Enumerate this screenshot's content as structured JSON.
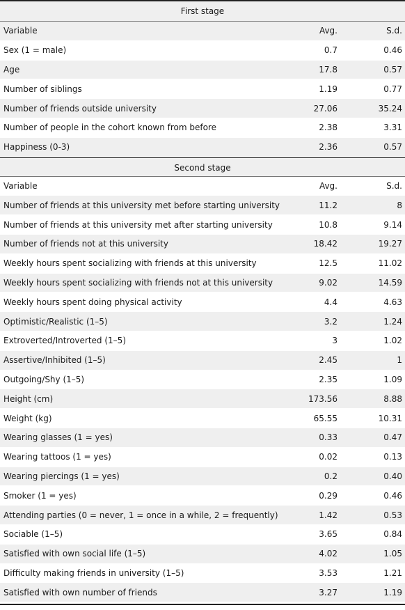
{
  "stage1": {
    "title": "First stage",
    "header": {
      "variable": "Variable",
      "avg": "Avg.",
      "sd": "S.d."
    },
    "rows": [
      {
        "variable": "Sex (1 = male)",
        "avg": "0.7",
        "sd": "0.46"
      },
      {
        "variable": "Age",
        "avg": "17.8",
        "sd": "0.57"
      },
      {
        "variable": "Number of siblings",
        "avg": "1.19",
        "sd": "0.77"
      },
      {
        "variable": "Number of friends outside university",
        "avg": "27.06",
        "sd": "35.24"
      },
      {
        "variable": "Number of people in the cohort known from before",
        "avg": "2.38",
        "sd": "3.31"
      },
      {
        "variable": "Happiness (0-3)",
        "avg": "2.36",
        "sd": "0.57"
      }
    ]
  },
  "stage2": {
    "title": "Second stage",
    "header": {
      "variable": "Variable",
      "avg": "Avg.",
      "sd": "S.d."
    },
    "rows": [
      {
        "variable": "Number of friends at this university met before starting university",
        "avg": "11.2",
        "sd": "8"
      },
      {
        "variable": "Number of friends at this university met after starting university",
        "avg": "10.8",
        "sd": "9.14"
      },
      {
        "variable": "Number of friends not at this university",
        "avg": "18.42",
        "sd": "19.27"
      },
      {
        "variable": "Weekly hours spent socializing with friends at this university",
        "avg": "12.5",
        "sd": "11.02"
      },
      {
        "variable": "Weekly hours spent socializing with friends not at this university",
        "avg": "9.02",
        "sd": "14.59"
      },
      {
        "variable": "Weekly hours spent doing physical activity",
        "avg": "4.4",
        "sd": "4.63"
      },
      {
        "variable": "Optimistic/Realistic (1–5)",
        "avg": "3.2",
        "sd": "1.24"
      },
      {
        "variable": "Extroverted/Introverted (1–5)",
        "avg": "3",
        "sd": "1.02"
      },
      {
        "variable": "Assertive/Inhibited (1–5)",
        "avg": "2.45",
        "sd": "1"
      },
      {
        "variable": "Outgoing/Shy (1–5)",
        "avg": "2.35",
        "sd": "1.09"
      },
      {
        "variable": "Height (cm)",
        "avg": "173.56",
        "sd": "8.88"
      },
      {
        "variable": "Weight (kg)",
        "avg": "65.55",
        "sd": "10.31"
      },
      {
        "variable": "Wearing glasses (1 = yes)",
        "avg": "0.33",
        "sd": "0.47"
      },
      {
        "variable": "Wearing tattoos (1 = yes)",
        "avg": "0.02",
        "sd": "0.13"
      },
      {
        "variable": "Wearing piercings (1 = yes)",
        "avg": "0.2",
        "sd": "0.40"
      },
      {
        "variable": "Smoker (1 = yes)",
        "avg": "0.29",
        "sd": "0.46"
      },
      {
        "variable": "Attending parties (0 = never, 1 = once in a while, 2 = frequently)",
        "avg": "1.42",
        "sd": "0.53"
      },
      {
        "variable": "Sociable (1–5)",
        "avg": "3.65",
        "sd": "0.84"
      },
      {
        "variable": "Satisfied with own social life (1–5)",
        "avg": "4.02",
        "sd": "1.05"
      },
      {
        "variable": "Difficulty making friends in university (1–5)",
        "avg": "3.53",
        "sd": "1.21"
      },
      {
        "variable": "Satisfied with own number of friends",
        "avg": "3.27",
        "sd": "1.19"
      }
    ]
  }
}
